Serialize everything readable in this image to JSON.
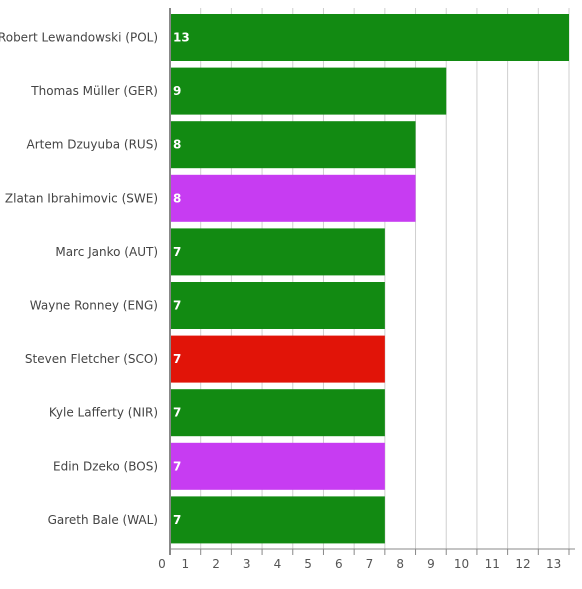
{
  "chart_data": {
    "type": "bar",
    "orientation": "horizontal",
    "categories": [
      "Robert Lewandowski (POL)",
      "Thomas Müller (GER)",
      "Artem Dzuyuba (RUS)",
      "Zlatan Ibrahimovic (SWE)",
      "Marc Janko (AUT)",
      "Wayne Ronney (ENG)",
      "Steven Fletcher (SCO)",
      "Kyle Lafferty (NIR)",
      "Edin Dzeko (BOS)",
      "Gareth Bale (WAL)"
    ],
    "values": [
      13,
      9,
      8,
      8,
      7,
      7,
      7,
      7,
      7,
      7
    ],
    "bar_colors": [
      "#128a12",
      "#128a12",
      "#128a12",
      "#c73cf2",
      "#128a12",
      "#128a12",
      "#e11408",
      "#128a12",
      "#c73cf2",
      "#128a12"
    ],
    "data_labels": [
      "13",
      "9",
      "8",
      "8",
      "7",
      "7",
      "7",
      "7",
      "7",
      "7"
    ],
    "xlim": [
      0,
      13
    ],
    "xticks": [
      "0",
      "1",
      "2",
      "3",
      "4",
      "5",
      "6",
      "7",
      "8",
      "9",
      "10",
      "11",
      "12",
      "13"
    ],
    "grid": true,
    "gridline_color": "#cfcfcf",
    "axis_color": "#888888",
    "title": "",
    "xlabel": "",
    "ylabel": ""
  }
}
